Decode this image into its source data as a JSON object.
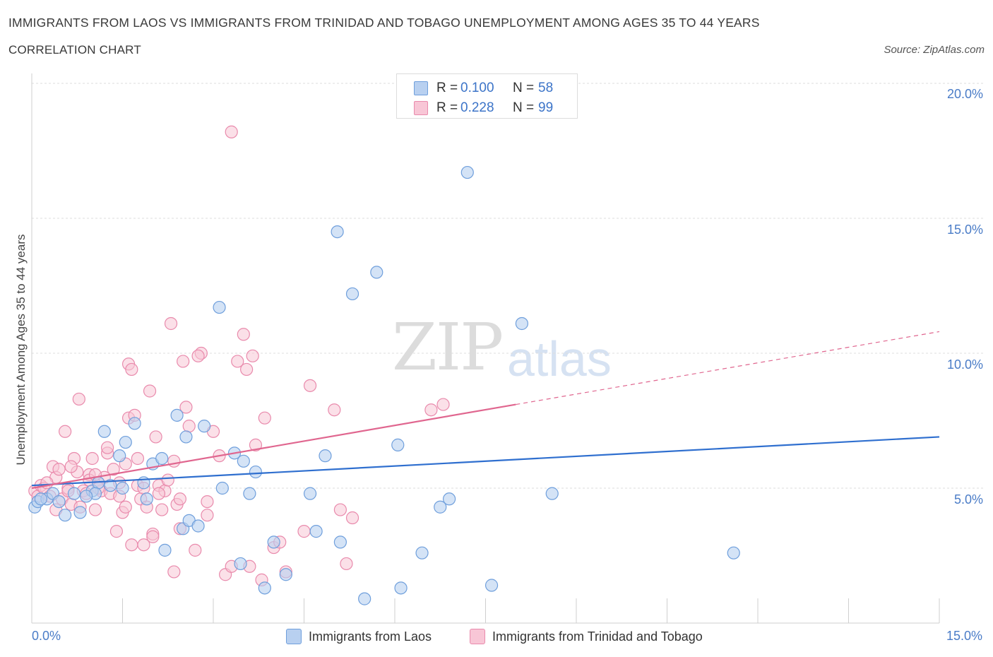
{
  "header": {
    "title": "IMMIGRANTS FROM LAOS VS IMMIGRANTS FROM TRINIDAD AND TOBAGO UNEMPLOYMENT AMONG AGES 35 TO 44 YEARS",
    "subtitle": "CORRELATION CHART",
    "source": "Source: ZipAtlas.com"
  },
  "watermark": {
    "zip": "ZIP",
    "atlas": "atlas"
  },
  "legend": {
    "rows": [
      {
        "r_label": "R =",
        "r_value": "0.100",
        "n_label": "N =",
        "n_value": "58"
      },
      {
        "r_label": "R =",
        "r_value": "0.228",
        "n_label": "N =",
        "n_value": "99"
      }
    ]
  },
  "bottom_legend": [
    "Immigrants from Laos",
    "Immigrants from Trinidad and Tobago"
  ],
  "axis": {
    "ylabel": "Unemployment Among Ages 35 to 44 years",
    "x_ticks": [
      "0.0%",
      "15.0%"
    ],
    "y_ticks": [
      "5.0%",
      "10.0%",
      "15.0%",
      "20.0%"
    ]
  },
  "colors": {
    "laos_fill": "#b8d0f0",
    "laos_stroke": "#6f9fdc",
    "laos_line": "#2f6fcf",
    "tt_fill": "#f8c6d6",
    "tt_stroke": "#e98aac",
    "tt_line": "#e0668f"
  },
  "chart_data": {
    "type": "scatter",
    "xlim": [
      0,
      15
    ],
    "ylim": [
      0,
      20
    ],
    "series": [
      {
        "name": "Immigrants from Laos",
        "trend": {
          "x": [
            0,
            15
          ],
          "y": [
            5.1,
            6.9
          ]
        },
        "points": [
          [
            0.05,
            4.3
          ],
          [
            0.1,
            4.5
          ],
          [
            0.25,
            4.6
          ],
          [
            0.35,
            4.8
          ],
          [
            0.55,
            4.0
          ],
          [
            0.7,
            4.8
          ],
          [
            0.8,
            4.1
          ],
          [
            1.0,
            4.9
          ],
          [
            1.1,
            5.2
          ],
          [
            1.3,
            5.1
          ],
          [
            1.2,
            7.1
          ],
          [
            1.45,
            6.2
          ],
          [
            1.5,
            5.0
          ],
          [
            1.55,
            6.7
          ],
          [
            1.7,
            7.4
          ],
          [
            1.9,
            4.6
          ],
          [
            2.0,
            5.9
          ],
          [
            2.15,
            6.1
          ],
          [
            2.2,
            2.7
          ],
          [
            2.4,
            7.7
          ],
          [
            2.5,
            3.5
          ],
          [
            2.6,
            3.8
          ],
          [
            2.75,
            3.6
          ],
          [
            2.55,
            6.9
          ],
          [
            2.85,
            7.3
          ],
          [
            3.1,
            11.7
          ],
          [
            3.15,
            5.0
          ],
          [
            3.35,
            6.3
          ],
          [
            3.45,
            2.2
          ],
          [
            3.5,
            6.0
          ],
          [
            3.6,
            4.8
          ],
          [
            3.7,
            5.6
          ],
          [
            3.85,
            1.3
          ],
          [
            4.0,
            3.0
          ],
          [
            4.2,
            1.8
          ],
          [
            4.6,
            4.8
          ],
          [
            4.7,
            3.4
          ],
          [
            4.85,
            6.2
          ],
          [
            5.05,
            14.5
          ],
          [
            5.1,
            3.0
          ],
          [
            5.3,
            12.2
          ],
          [
            5.5,
            0.9
          ],
          [
            5.7,
            13.0
          ],
          [
            6.05,
            6.6
          ],
          [
            6.1,
            1.3
          ],
          [
            6.45,
            2.6
          ],
          [
            6.75,
            4.3
          ],
          [
            6.9,
            4.6
          ],
          [
            7.2,
            16.7
          ],
          [
            7.6,
            1.4
          ],
          [
            8.1,
            11.1
          ],
          [
            8.6,
            4.8
          ],
          [
            11.6,
            2.6
          ],
          [
            0.15,
            4.6
          ],
          [
            0.45,
            4.5
          ],
          [
            1.05,
            4.8
          ],
          [
            1.85,
            5.2
          ],
          [
            0.9,
            4.7
          ]
        ]
      },
      {
        "name": "Immigrants from Trinidad and Tobago",
        "trend": {
          "x": [
            0,
            8.0
          ],
          "y": [
            5.0,
            8.1
          ]
        },
        "trend_extension": {
          "x": [
            8.0,
            15.0
          ],
          "y": [
            8.1,
            10.8
          ]
        },
        "points": [
          [
            0.05,
            4.9
          ],
          [
            0.1,
            4.7
          ],
          [
            0.15,
            5.1
          ],
          [
            0.2,
            5.0
          ],
          [
            0.3,
            4.7
          ],
          [
            0.35,
            5.8
          ],
          [
            0.4,
            5.4
          ],
          [
            0.45,
            5.7
          ],
          [
            0.5,
            4.6
          ],
          [
            0.55,
            7.1
          ],
          [
            0.6,
            5.0
          ],
          [
            0.65,
            4.4
          ],
          [
            0.7,
            6.1
          ],
          [
            0.75,
            5.6
          ],
          [
            0.8,
            4.3
          ],
          [
            0.85,
            4.9
          ],
          [
            0.9,
            4.8
          ],
          [
            0.95,
            5.5
          ],
          [
            0.78,
            8.3
          ],
          [
            1.0,
            6.1
          ],
          [
            1.05,
            4.2
          ],
          [
            1.1,
            5.2
          ],
          [
            1.15,
            4.9
          ],
          [
            1.2,
            5.4
          ],
          [
            1.25,
            6.3
          ],
          [
            1.3,
            4.8
          ],
          [
            1.35,
            5.7
          ],
          [
            1.4,
            3.4
          ],
          [
            1.45,
            5.2
          ],
          [
            1.5,
            4.1
          ],
          [
            1.55,
            5.9
          ],
          [
            1.6,
            7.6
          ],
          [
            1.65,
            2.9
          ],
          [
            1.7,
            7.7
          ],
          [
            1.75,
            5.1
          ],
          [
            1.8,
            4.6
          ],
          [
            1.85,
            5.0
          ],
          [
            1.9,
            4.3
          ],
          [
            1.95,
            8.6
          ],
          [
            2.0,
            3.3
          ],
          [
            2.05,
            6.9
          ],
          [
            2.1,
            5.1
          ],
          [
            2.15,
            4.2
          ],
          [
            2.2,
            4.9
          ],
          [
            2.25,
            5.3
          ],
          [
            2.3,
            11.1
          ],
          [
            2.35,
            1.9
          ],
          [
            2.4,
            4.4
          ],
          [
            2.45,
            3.5
          ],
          [
            2.5,
            9.7
          ],
          [
            2.55,
            8.0
          ],
          [
            2.6,
            7.3
          ],
          [
            2.7,
            2.7
          ],
          [
            2.8,
            10.0
          ],
          [
            2.9,
            4.0
          ],
          [
            3.0,
            7.1
          ],
          [
            3.1,
            6.2
          ],
          [
            3.2,
            1.8
          ],
          [
            3.3,
            2.1
          ],
          [
            3.4,
            9.7
          ],
          [
            3.5,
            10.7
          ],
          [
            3.55,
            9.4
          ],
          [
            3.6,
            2.1
          ],
          [
            3.65,
            9.9
          ],
          [
            3.7,
            6.6
          ],
          [
            3.8,
            1.6
          ],
          [
            3.85,
            7.6
          ],
          [
            4.0,
            2.8
          ],
          [
            4.1,
            3.0
          ],
          [
            4.2,
            1.9
          ],
          [
            4.5,
            3.4
          ],
          [
            4.6,
            8.8
          ],
          [
            5.0,
            7.9
          ],
          [
            5.1,
            4.2
          ],
          [
            5.2,
            2.2
          ],
          [
            5.3,
            3.9
          ],
          [
            6.6,
            7.9
          ],
          [
            6.8,
            8.1
          ],
          [
            3.3,
            18.2
          ],
          [
            1.6,
            9.6
          ],
          [
            1.65,
            9.4
          ],
          [
            2.75,
            9.9
          ],
          [
            1.1,
            5.0
          ],
          [
            0.65,
            5.8
          ],
          [
            1.75,
            6.1
          ],
          [
            2.1,
            4.8
          ],
          [
            1.25,
            6.5
          ],
          [
            0.4,
            4.2
          ],
          [
            0.95,
            5.3
          ],
          [
            1.45,
            4.7
          ],
          [
            2.35,
            6.0
          ],
          [
            1.55,
            4.3
          ],
          [
            2.0,
            3.2
          ],
          [
            0.25,
            5.2
          ],
          [
            1.85,
            2.9
          ],
          [
            0.6,
            4.9
          ],
          [
            1.05,
            5.5
          ],
          [
            2.45,
            4.6
          ],
          [
            2.9,
            4.5
          ]
        ]
      }
    ]
  }
}
